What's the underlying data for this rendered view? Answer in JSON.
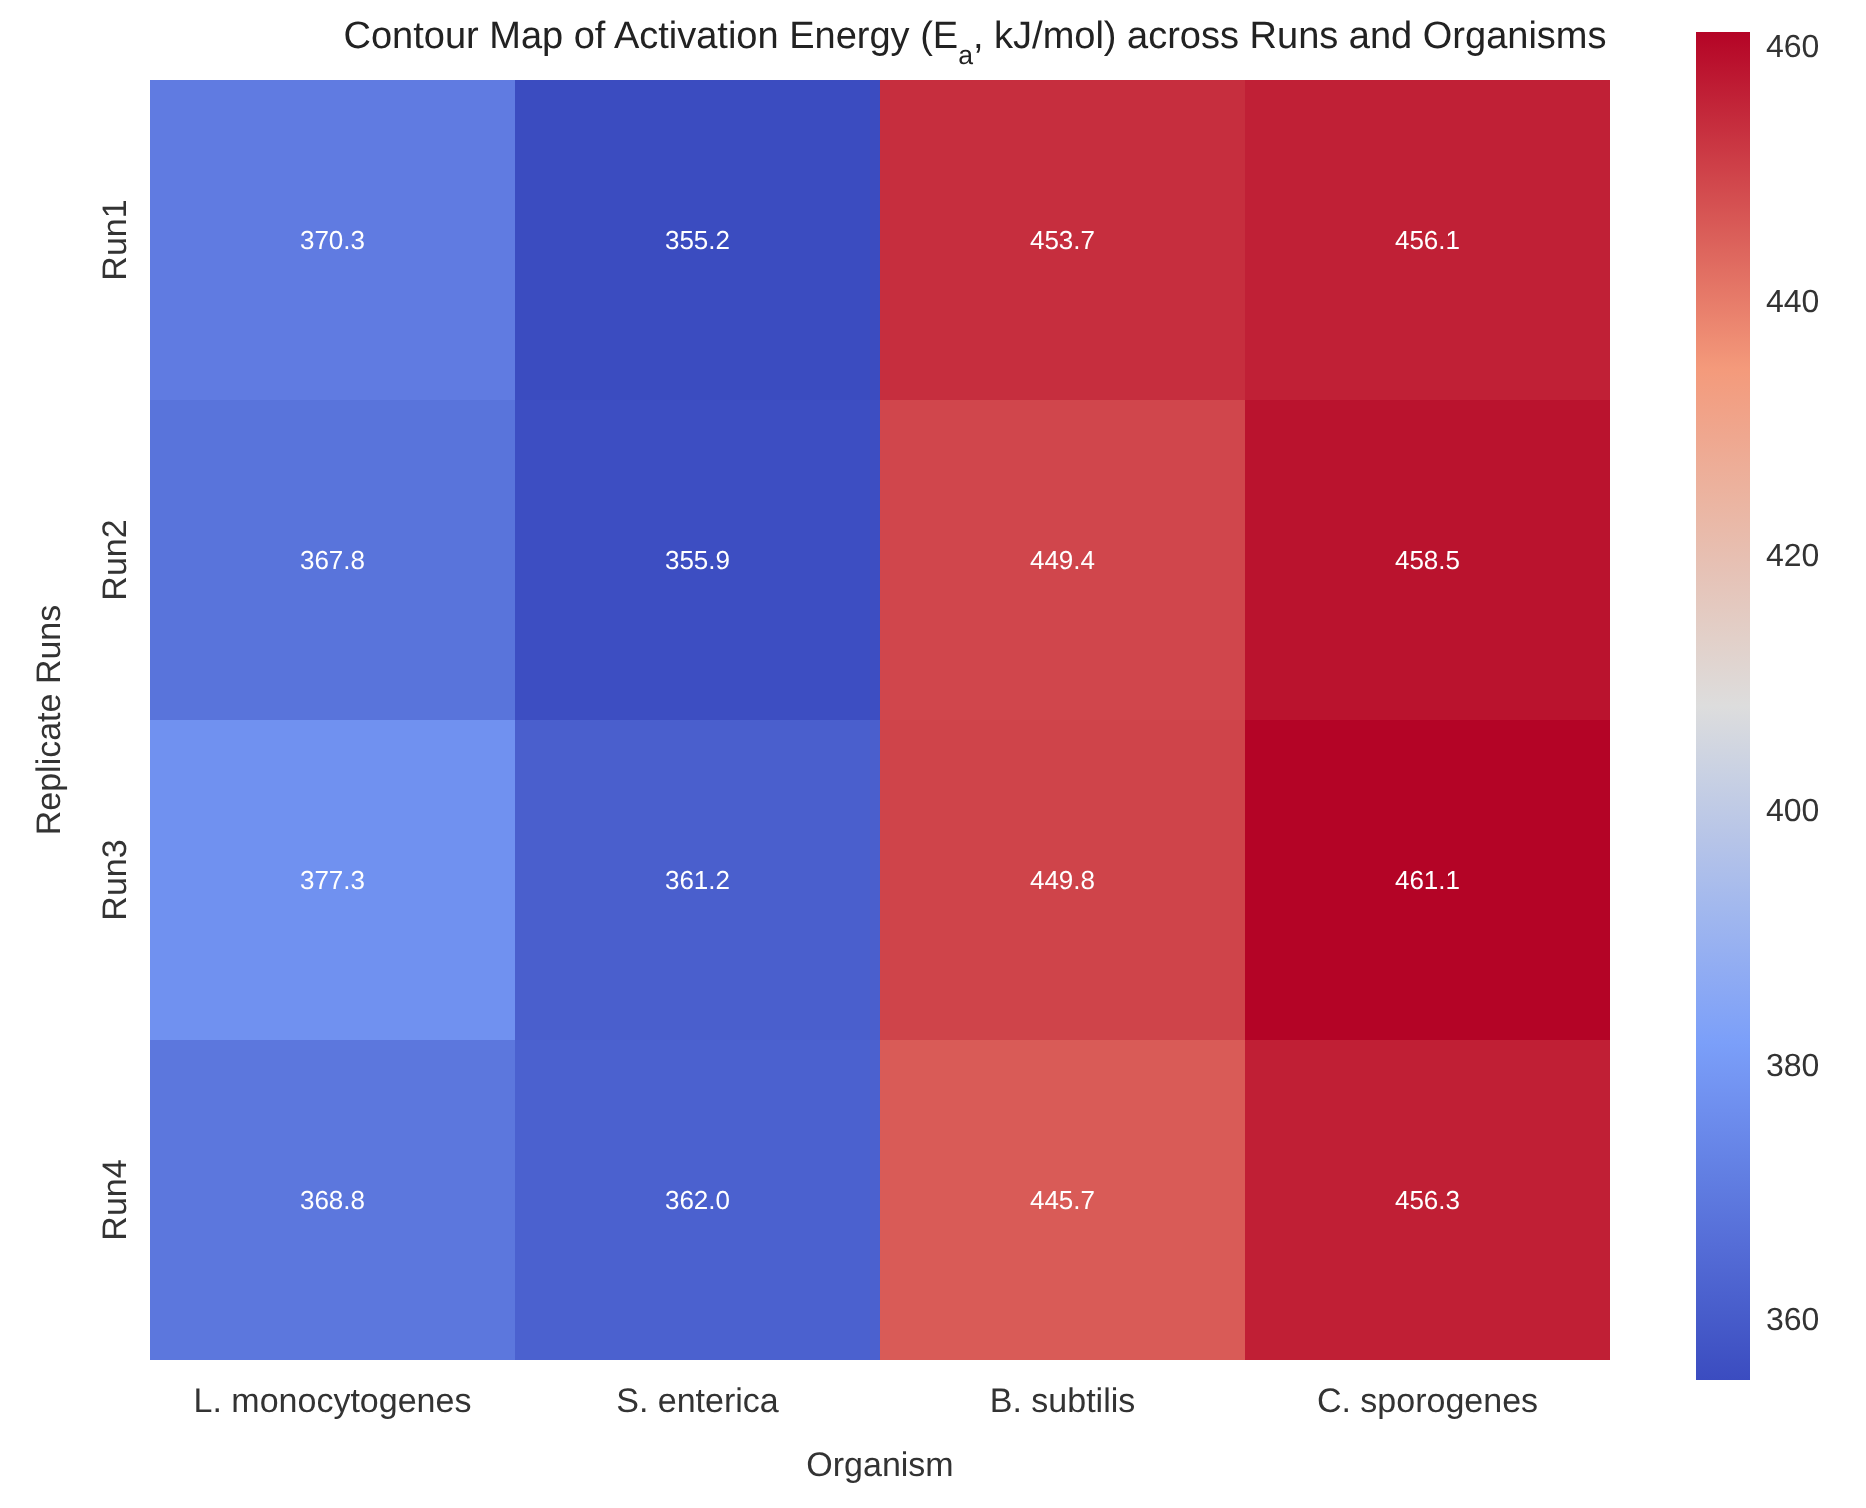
{
  "chart_data": {
    "type": "heatmap",
    "title": "Contour Map of Activation Energy (E$_{a}$, kJ/mol) across Runs and Organisms",
    "xlabel": "Organism",
    "ylabel": "Replicate Runs",
    "categories": [
      "L. monocytogenes",
      "S. enterica",
      "B. subtilis",
      "C. sporogenes"
    ],
    "y_categories": [
      "Run1",
      "Run2",
      "Run3",
      "Run4"
    ],
    "cells": [
      [
        370.3,
        355.2,
        453.7,
        456.1
      ],
      [
        367.8,
        355.9,
        449.4,
        458.5
      ],
      [
        377.3,
        361.2,
        449.8,
        461.1
      ],
      [
        368.8,
        362.0,
        445.7,
        456.3
      ]
    ],
    "cell_labels": [
      [
        "370.3",
        "355.2",
        "453.7",
        "456.1"
      ],
      [
        "367.8",
        "355.9",
        "449.4",
        "458.5"
      ],
      [
        "377.3",
        "361.2",
        "449.8",
        "461.1"
      ],
      [
        "368.8",
        "362.0",
        "445.7",
        "456.3"
      ]
    ],
    "data_labels": true,
    "clim": [
      355.2,
      461.1
    ],
    "cticks": [
      360,
      380,
      400,
      420,
      440,
      460
    ]
  }
}
